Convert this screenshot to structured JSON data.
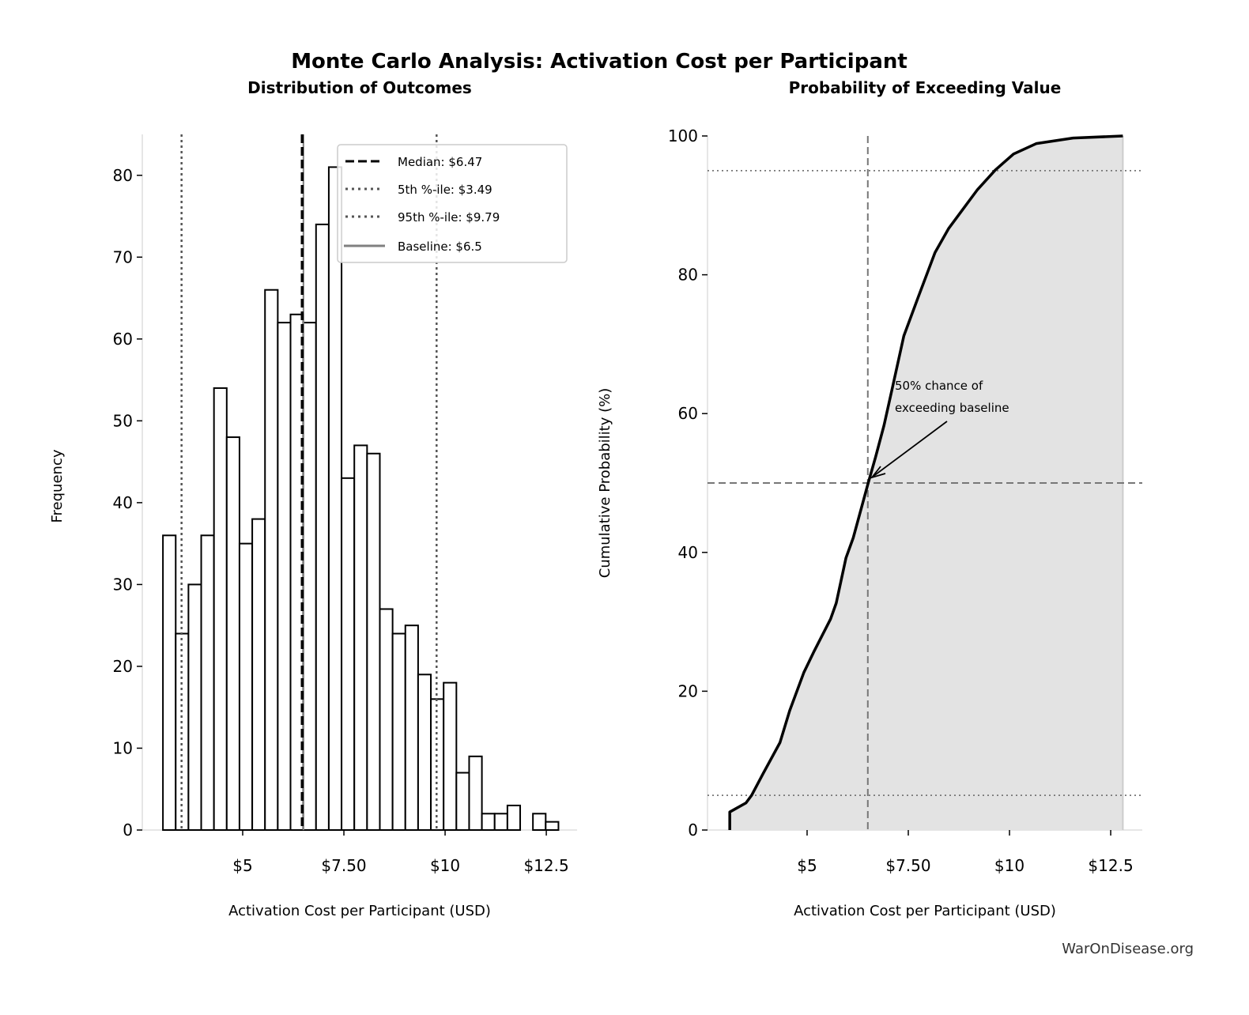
{
  "title": "Monte Carlo Analysis: Activation Cost per Participant",
  "watermark": "WarOnDisease.org",
  "chart_data": [
    {
      "type": "bar",
      "subtitle": "Distribution of Outcomes",
      "xlabel": "Activation Cost per Participant (USD)",
      "ylabel": "Frequency",
      "bin_start": 3.03,
      "bin_end": 12.8,
      "counts": [
        36,
        24,
        30,
        36,
        54,
        48,
        35,
        38,
        66,
        62,
        63,
        62,
        74,
        81,
        43,
        47,
        46,
        27,
        24,
        25,
        19,
        16,
        18,
        7,
        9,
        2,
        2,
        3,
        0,
        2,
        1
      ],
      "xlim": [
        2.52,
        13.26
      ],
      "ylim": [
        0,
        85
      ],
      "xticks": [
        5,
        7.5,
        10,
        12.5
      ],
      "xtick_labels": [
        "$5",
        "$7.50",
        "$10",
        "$12.5"
      ],
      "yticks": [
        0,
        10,
        20,
        30,
        40,
        50,
        60,
        70,
        80
      ],
      "ytick_labels": [
        "0",
        "10",
        "20",
        "30",
        "40",
        "50",
        "60",
        "70",
        "80"
      ],
      "bar_fill": "#ffffff",
      "bar_edge": "#000000",
      "vlines": [
        {
          "x": 6.47,
          "label": "Median: $6.47",
          "style": "dashed",
          "color": "#000000"
        },
        {
          "x": 3.49,
          "label": "5th %-ile: $3.49",
          "style": "dotted",
          "color": "#555555"
        },
        {
          "x": 9.79,
          "label": "95th %-ile: $9.79",
          "style": "dotted",
          "color": "#555555"
        },
        {
          "x": 6.5,
          "label": "Baseline: $6.5",
          "style": "solid",
          "color": "#808080"
        }
      ],
      "legend_position": "top-right"
    },
    {
      "type": "area",
      "subtitle": "Probability of Exceeding Value",
      "xlabel": "Activation Cost per Participant (USD)",
      "ylabel": "Cumulative Probability (%)",
      "x": [
        3.09,
        3.09,
        3.49,
        3.63,
        3.91,
        4.33,
        4.57,
        4.92,
        5.16,
        5.58,
        5.72,
        5.96,
        6.14,
        6.5,
        6.69,
        6.9,
        7.11,
        7.39,
        7.74,
        8.16,
        8.5,
        8.92,
        9.2,
        9.65,
        10.1,
        10.66,
        11.57,
        12.8
      ],
      "y": [
        0,
        2.6,
        3.9,
        5.0,
        8.1,
        12.6,
        17.2,
        22.7,
        25.6,
        30.4,
        32.7,
        39.2,
        42.1,
        49.8,
        53.7,
        58.3,
        63.8,
        71.2,
        76.7,
        83.2,
        86.7,
        90.0,
        92.2,
        95.1,
        97.4,
        98.9,
        99.7,
        100
      ],
      "xlim": [
        2.54,
        13.28
      ],
      "ylim": [
        0,
        100
      ],
      "xticks": [
        5,
        7.5,
        10,
        12.5
      ],
      "xtick_labels": [
        "$5",
        "$7.50",
        "$10",
        "$12.5"
      ],
      "yticks": [
        0,
        20,
        40,
        60,
        80,
        100
      ],
      "ytick_labels": [
        "0",
        "20",
        "40",
        "60",
        "80",
        "100"
      ],
      "fill_color": "#e3e3e3",
      "line_color": "#000000",
      "hlines": [
        {
          "y": 5,
          "style": "dotted"
        },
        {
          "y": 50,
          "style": "dashed"
        },
        {
          "y": 95,
          "style": "dotted"
        }
      ],
      "vline": {
        "x": 6.5,
        "style": "dashed"
      },
      "annotation": {
        "text_line1": "50% chance of",
        "text_line2": "exceeding baseline",
        "x": 6.5,
        "y": 50
      }
    }
  ]
}
